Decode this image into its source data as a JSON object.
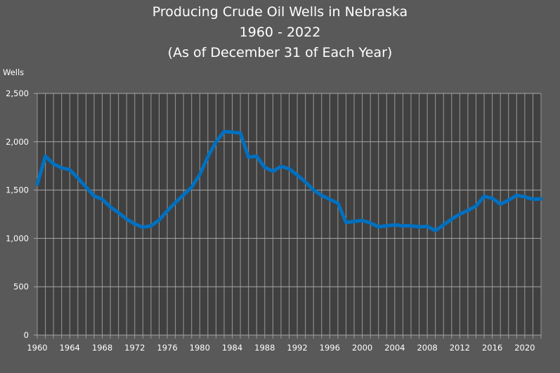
{
  "chart_data": {
    "type": "line",
    "title": [
      "Producing Crude Oil Wells in Nebraska",
      "1960 - 2022",
      "(As of December 31 of Each Year)"
    ],
    "xlabel": "",
    "ylabel": "Wells",
    "xlim": [
      1960,
      2022
    ],
    "ylim": [
      0,
      2500
    ],
    "yticks": [
      0,
      500,
      1000,
      1500,
      2000,
      2500
    ],
    "ytick_labels": [
      "0",
      "500",
      "1,000",
      "1,500",
      "2,000",
      "2,500"
    ],
    "xtick_labels": [
      "1960",
      "1964",
      "1968",
      "1972",
      "1976",
      "1980",
      "1984",
      "1988",
      "1992",
      "1996",
      "2000",
      "2004",
      "2008",
      "2012",
      "2016",
      "2020"
    ],
    "grid": true,
    "line_color": "#0070C0",
    "plot_background": "#404040",
    "background": "#595959",
    "x": [
      1960,
      1961,
      1962,
      1963,
      1964,
      1965,
      1966,
      1967,
      1968,
      1969,
      1970,
      1971,
      1972,
      1973,
      1974,
      1975,
      1976,
      1977,
      1978,
      1979,
      1980,
      1981,
      1982,
      1983,
      1984,
      1985,
      1986,
      1987,
      1988,
      1989,
      1990,
      1991,
      1992,
      1993,
      1994,
      1995,
      1996,
      1997,
      1998,
      1999,
      2000,
      2001,
      2002,
      2003,
      2004,
      2005,
      2006,
      2007,
      2008,
      2009,
      2010,
      2011,
      2012,
      2013,
      2014,
      2015,
      2016,
      2017,
      2018,
      2019,
      2020,
      2021,
      2022
    ],
    "values": [
      1560,
      1850,
      1770,
      1730,
      1710,
      1625,
      1530,
      1440,
      1405,
      1325,
      1265,
      1200,
      1150,
      1115,
      1130,
      1190,
      1285,
      1370,
      1450,
      1530,
      1660,
      1845,
      2000,
      2105,
      2100,
      2090,
      1840,
      1850,
      1735,
      1695,
      1745,
      1720,
      1655,
      1585,
      1500,
      1445,
      1405,
      1365,
      1165,
      1175,
      1185,
      1160,
      1120,
      1130,
      1140,
      1130,
      1130,
      1120,
      1125,
      1080,
      1140,
      1200,
      1250,
      1290,
      1335,
      1435,
      1415,
      1355,
      1395,
      1445,
      1430,
      1405,
      1410
    ]
  }
}
